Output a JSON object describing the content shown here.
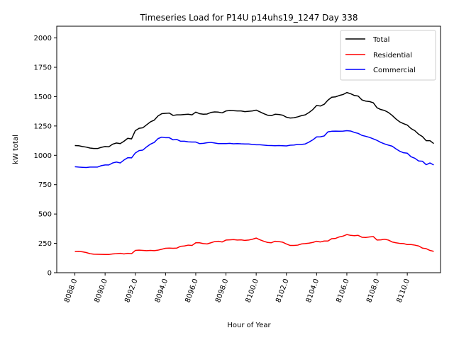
{
  "chart_data": {
    "type": "line",
    "title": "Timeseries Load for P14U p14uhs19_1247  Day 338",
    "xlabel": "Hour of Year",
    "ylabel": "kW total",
    "xlim": [
      8086.8,
      8112.2
    ],
    "ylim": [
      0,
      2100
    ],
    "xticks": [
      8088,
      8090,
      8092,
      8094,
      8096,
      8098,
      8100,
      8102,
      8104,
      8106,
      8108,
      8110
    ],
    "xtick_labels": [
      "8088.0",
      "8090.0",
      "8092.0",
      "8094.0",
      "8096.0",
      "8098.0",
      "8100.0",
      "8102.0",
      "8104.0",
      "8106.0",
      "8108.0",
      "8110.0"
    ],
    "yticks": [
      0,
      250,
      500,
      750,
      1000,
      1250,
      1500,
      1750,
      2000
    ],
    "ytick_labels": [
      "0",
      "250",
      "500",
      "750",
      "1000",
      "1250",
      "1500",
      "1750",
      "2000"
    ],
    "legend_position": "top-right",
    "x": [
      8088,
      8088.25,
      8088.5,
      8088.75,
      8089,
      8089.25,
      8089.5,
      8089.75,
      8090,
      8090.25,
      8090.5,
      8090.75,
      8091,
      8091.25,
      8091.5,
      8091.75,
      8092,
      8092.25,
      8092.5,
      8092.75,
      8093,
      8093.25,
      8093.5,
      8093.75,
      8094,
      8094.25,
      8094.5,
      8094.75,
      8095,
      8095.25,
      8095.5,
      8095.75,
      8096,
      8096.25,
      8096.5,
      8096.75,
      8097,
      8097.25,
      8097.5,
      8097.75,
      8098,
      8098.25,
      8098.5,
      8098.75,
      8099,
      8099.25,
      8099.5,
      8099.75,
      8100,
      8100.25,
      8100.5,
      8100.75,
      8101,
      8101.25,
      8101.5,
      8101.75,
      8102,
      8102.25,
      8102.5,
      8102.75,
      8103,
      8103.25,
      8103.5,
      8103.75,
      8104,
      8104.25,
      8104.5,
      8104.75,
      8105,
      8105.25,
      8105.5,
      8105.75,
      8106,
      8106.25,
      8106.5,
      8106.75,
      8107,
      8107.25,
      8107.5,
      8107.75,
      8108,
      8108.25,
      8108.5,
      8108.75,
      8109,
      8109.25,
      8109.5,
      8109.75,
      8110,
      8110.25,
      8110.5,
      8110.75,
      8111,
      8111.25,
      8111.5,
      8111.75
    ],
    "series": [
      {
        "name": "Total",
        "color": "#000000",
        "values": [
          1083,
          1082,
          1075,
          1070,
          1062,
          1058,
          1058,
          1068,
          1075,
          1073,
          1095,
          1105,
          1100,
          1120,
          1145,
          1140,
          1210,
          1230,
          1235,
          1260,
          1285,
          1300,
          1335,
          1355,
          1358,
          1360,
          1340,
          1345,
          1345,
          1348,
          1350,
          1345,
          1368,
          1355,
          1350,
          1352,
          1365,
          1370,
          1368,
          1362,
          1378,
          1382,
          1380,
          1378,
          1378,
          1372,
          1375,
          1378,
          1385,
          1370,
          1355,
          1342,
          1338,
          1350,
          1348,
          1342,
          1325,
          1318,
          1320,
          1328,
          1338,
          1345,
          1365,
          1390,
          1425,
          1420,
          1435,
          1470,
          1495,
          1498,
          1510,
          1518,
          1535,
          1525,
          1510,
          1505,
          1472,
          1462,
          1458,
          1448,
          1405,
          1390,
          1382,
          1365,
          1340,
          1310,
          1285,
          1270,
          1258,
          1228,
          1210,
          1180,
          1160,
          1125,
          1125,
          1100
        ]
      },
      {
        "name": "Residential",
        "color": "#ff0000",
        "values": [
          180,
          182,
          178,
          172,
          162,
          158,
          157,
          156,
          155,
          155,
          160,
          162,
          165,
          160,
          165,
          162,
          190,
          192,
          190,
          188,
          190,
          188,
          192,
          200,
          208,
          210,
          208,
          210,
          225,
          228,
          235,
          232,
          255,
          255,
          248,
          245,
          255,
          265,
          268,
          262,
          278,
          280,
          282,
          278,
          280,
          275,
          278,
          285,
          295,
          280,
          268,
          258,
          255,
          268,
          265,
          260,
          245,
          232,
          232,
          235,
          245,
          248,
          252,
          258,
          268,
          262,
          270,
          270,
          290,
          292,
          305,
          312,
          325,
          318,
          315,
          318,
          302,
          300,
          305,
          308,
          278,
          280,
          285,
          278,
          262,
          255,
          250,
          248,
          240,
          240,
          235,
          228,
          210,
          205,
          190,
          182
        ]
      },
      {
        "name": "Commercial",
        "color": "#0000ff",
        "values": [
          903,
          900,
          898,
          896,
          900,
          900,
          900,
          912,
          918,
          918,
          935,
          943,
          935,
          960,
          980,
          978,
          1020,
          1040,
          1045,
          1072,
          1095,
          1110,
          1142,
          1155,
          1150,
          1150,
          1132,
          1135,
          1120,
          1120,
          1115,
          1113,
          1113,
          1100,
          1102,
          1107,
          1110,
          1105,
          1100,
          1100,
          1100,
          1102,
          1098,
          1100,
          1098,
          1097,
          1097,
          1093,
          1090,
          1090,
          1087,
          1084,
          1083,
          1082,
          1083,
          1082,
          1080,
          1086,
          1088,
          1093,
          1093,
          1097,
          1113,
          1132,
          1157,
          1158,
          1165,
          1200,
          1205,
          1206,
          1205,
          1206,
          1210,
          1207,
          1195,
          1187,
          1170,
          1162,
          1153,
          1140,
          1127,
          1110,
          1097,
          1087,
          1078,
          1055,
          1035,
          1022,
          1018,
          988,
          975,
          952,
          950,
          920,
          935,
          918
        ]
      }
    ]
  }
}
